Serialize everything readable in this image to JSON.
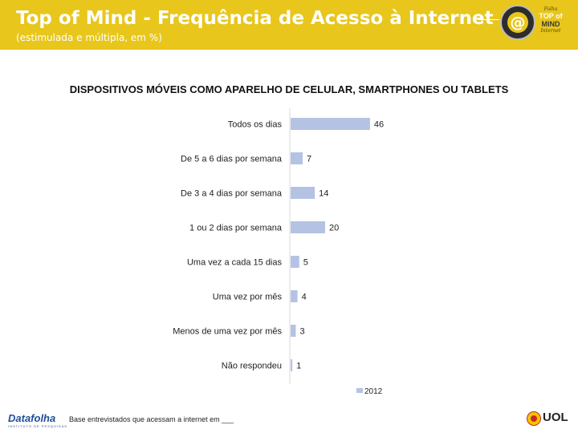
{
  "header": {
    "title": "Top of Mind - Frequência de Acesso à Internet",
    "subtitle": "(estimulada e múltipla, em %)",
    "logo": {
      "line1": "Folha",
      "line2": "TOP of",
      "line3": "MIND",
      "line4": "Internet"
    }
  },
  "chart_data": {
    "type": "bar",
    "orientation": "horizontal",
    "title": "DISPOSITIVOS MÓVEIS COMO APARELHO DE CELULAR, SMARTPHONES OU TABLETS",
    "categories": [
      "Todos os dias",
      "De 5 a 6 dias por semana",
      "De 3 a 4 dias por semana",
      "1 ou 2 dias por semana",
      "Uma vez a cada 15 dias",
      "Uma vez por mês",
      "Menos de uma vez por mês",
      "Não respondeu"
    ],
    "series": [
      {
        "name": "2012",
        "values": [
          46,
          7,
          14,
          20,
          5,
          4,
          3,
          1
        ],
        "color": "#b4c3e3"
      }
    ],
    "data_labels": true,
    "grid": false,
    "legend": "bottom"
  },
  "footer": {
    "note": "Base entrevistados que acessam a internet em ___",
    "datafolha": "Datafolha",
    "datafolha_sub": "INSTITUTO DE PESQUISAS",
    "uol": "UOL"
  }
}
